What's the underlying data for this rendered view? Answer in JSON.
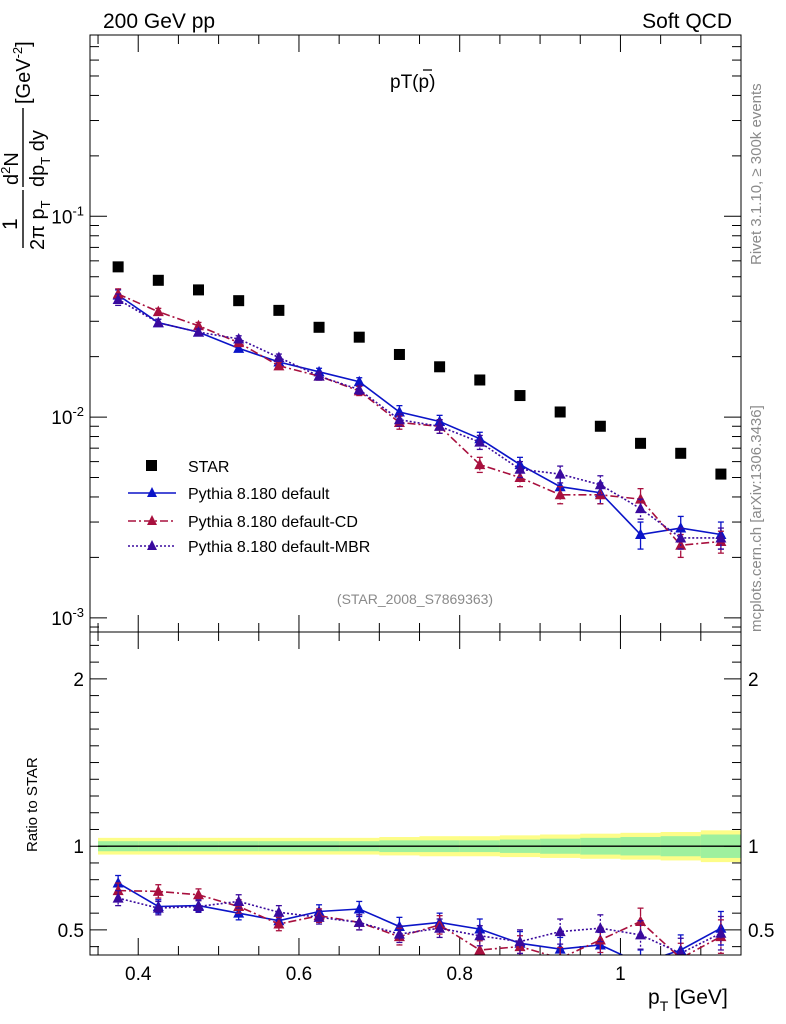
{
  "header": {
    "left": "200 GeV pp",
    "right": "Soft QCD"
  },
  "side_texts": {
    "rivet": "Rivet 3.1.10, ≥ 300k events",
    "mcplots": "mcplots.cern.ch [arXiv:1306.3436]"
  },
  "chart_data": [
    {
      "type": "scatter",
      "title": "pT(p̄)",
      "title_main": "pT(",
      "title_pbar": "p",
      "title_close": ")",
      "ylabel_frac_num": "1",
      "ylabel_frac_den": "2π p",
      "ylabel_frac_den_sub": "T",
      "ylabel_d2": "d",
      "ylabel_d2_sup": "2",
      "ylabel_N": "N",
      "ylabel_den2": "dp",
      "ylabel_den2_sub": "T",
      "ylabel_den2_rest": " dy",
      "ylabel_unit": "[GeV",
      "ylabel_unit_sup": "-2",
      "ylabel_unit_close": "]",
      "yscale": "log",
      "ylim": [
        0.00085,
        0.8
      ],
      "yticks": [
        {
          "v": 0.1,
          "base": "10",
          "exp": "-1"
        },
        {
          "v": 0.01,
          "base": "10",
          "exp": "-2"
        },
        {
          "v": 0.001,
          "base": "10",
          "exp": "-3"
        }
      ],
      "xlim": [
        0.34,
        1.15
      ],
      "watermark": "(STAR_2008_S7869363)",
      "legend_position": "center-left",
      "x": [
        0.375,
        0.425,
        0.475,
        0.525,
        0.575,
        0.625,
        0.675,
        0.725,
        0.775,
        0.825,
        0.875,
        0.925,
        0.975,
        1.025,
        1.075,
        1.125
      ],
      "series": [
        {
          "name": "STAR",
          "color": "#000000",
          "marker": "square",
          "line": "none",
          "values": [
            0.056,
            0.048,
            0.043,
            0.038,
            0.034,
            0.028,
            0.025,
            0.0205,
            0.0178,
            0.0153,
            0.0128,
            0.0106,
            0.009,
            0.0074,
            0.0066,
            0.0052
          ]
        },
        {
          "name": "Pythia 8.180 default",
          "color": "#0b14c8",
          "marker": "triangle",
          "line": "solid",
          "values": [
            0.0405,
            0.0295,
            0.0265,
            0.022,
            0.0188,
            0.0168,
            0.015,
            0.0106,
            0.0095,
            0.0078,
            0.0058,
            0.0045,
            0.0042,
            0.0026,
            0.0028,
            0.0026
          ],
          "errors": [
            0.0025,
            0.0012,
            0.001,
            0.0008,
            0.0007,
            0.0007,
            0.0007,
            0.0008,
            0.0007,
            0.0006,
            0.0005,
            0.0005,
            0.0005,
            0.0004,
            0.0004,
            0.0004
          ]
        },
        {
          "name": "Pythia 8.180 default-CD",
          "color": "#a8103e",
          "marker": "triangle",
          "line": "dashdot",
          "values": [
            0.041,
            0.0335,
            0.0285,
            0.0235,
            0.018,
            0.016,
            0.0135,
            0.0094,
            0.009,
            0.0058,
            0.005,
            0.0041,
            0.0041,
            0.0039,
            0.0023,
            0.0024
          ],
          "errors": [
            0.0025,
            0.0013,
            0.0011,
            0.0009,
            0.0007,
            0.0007,
            0.0007,
            0.0007,
            0.0007,
            0.0005,
            0.0005,
            0.0004,
            0.0004,
            0.0005,
            0.0003,
            0.0003
          ]
        },
        {
          "name": "Pythia 8.180 default-MBR",
          "color": "#3a0a9e",
          "marker": "triangle",
          "line": "dotted",
          "values": [
            0.0385,
            0.0295,
            0.0265,
            0.0245,
            0.0198,
            0.016,
            0.0137,
            0.0097,
            0.009,
            0.0075,
            0.0055,
            0.0052,
            0.0046,
            0.0035,
            0.0025,
            0.0025
          ],
          "errors": [
            0.0025,
            0.0012,
            0.001,
            0.0009,
            0.0008,
            0.0007,
            0.0007,
            0.0007,
            0.0007,
            0.0006,
            0.0005,
            0.0005,
            0.0005,
            0.0004,
            0.0003,
            0.0003
          ]
        }
      ]
    },
    {
      "type": "scatter",
      "ylabel": "Ratio to STAR",
      "xlabel_main": "p",
      "xlabel_sub": "T",
      "xlabel_rest": " [GeV]",
      "ylim": [
        0.35,
        2.28
      ],
      "yticks": [
        "0.5",
        "1",
        "2"
      ],
      "xlim": [
        0.34,
        1.15
      ],
      "xticks": [
        "0.4",
        "0.6",
        "0.8",
        "1"
      ],
      "reference_line": 1,
      "x": [
        0.375,
        0.425,
        0.475,
        0.525,
        0.575,
        0.625,
        0.675,
        0.725,
        0.775,
        0.825,
        0.875,
        0.925,
        0.975,
        1.025,
        1.075,
        1.125
      ],
      "band_edges": [
        0.35,
        0.4,
        0.45,
        0.5,
        0.55,
        0.6,
        0.65,
        0.7,
        0.75,
        0.8,
        0.85,
        0.9,
        0.95,
        1.0,
        1.05,
        1.1,
        1.15
      ],
      "band_stat": [
        0.03,
        0.03,
        0.03,
        0.03,
        0.03,
        0.03,
        0.03,
        0.035,
        0.035,
        0.035,
        0.04,
        0.045,
        0.05,
        0.055,
        0.06,
        0.07
      ],
      "band_total": [
        0.05,
        0.05,
        0.05,
        0.05,
        0.05,
        0.05,
        0.05,
        0.055,
        0.06,
        0.06,
        0.065,
        0.07,
        0.075,
        0.08,
        0.085,
        0.095
      ],
      "band_colors": {
        "total": "#fdfd88",
        "stat": "#9ef09e"
      },
      "series": [
        {
          "name": "Pythia 8.180 default",
          "color": "#0b14c8",
          "line": "solid",
          "values": [
            0.78,
            0.64,
            0.645,
            0.6,
            0.555,
            0.61,
            0.625,
            0.52,
            0.545,
            0.505,
            0.42,
            0.385,
            0.41,
            0.3,
            0.38,
            0.51
          ],
          "errors": [
            0.045,
            0.04,
            0.035,
            0.04,
            0.04,
            0.04,
            0.045,
            0.055,
            0.055,
            0.06,
            0.07,
            0.07,
            0.075,
            0.08,
            0.09,
            0.1
          ]
        },
        {
          "name": "Pythia 8.180 default-CD",
          "color": "#a8103e",
          "line": "dashdot",
          "values": [
            0.735,
            0.73,
            0.71,
            0.64,
            0.535,
            0.585,
            0.545,
            0.46,
            0.53,
            0.38,
            0.4,
            0.33,
            0.44,
            0.55,
            0.33,
            0.46
          ],
          "errors": [
            0.045,
            0.04,
            0.035,
            0.04,
            0.04,
            0.04,
            0.045,
            0.05,
            0.055,
            0.055,
            0.065,
            0.065,
            0.075,
            0.08,
            0.09,
            0.1
          ]
        },
        {
          "name": "Pythia 8.180 default-MBR",
          "color": "#3a0a9e",
          "line": "dotted",
          "values": [
            0.69,
            0.63,
            0.64,
            0.67,
            0.605,
            0.575,
            0.545,
            0.475,
            0.51,
            0.465,
            0.43,
            0.49,
            0.51,
            0.47,
            0.36,
            0.48
          ],
          "errors": [
            0.045,
            0.04,
            0.035,
            0.04,
            0.04,
            0.04,
            0.045,
            0.05,
            0.055,
            0.06,
            0.07,
            0.075,
            0.08,
            0.085,
            0.09,
            0.1
          ]
        }
      ]
    }
  ]
}
